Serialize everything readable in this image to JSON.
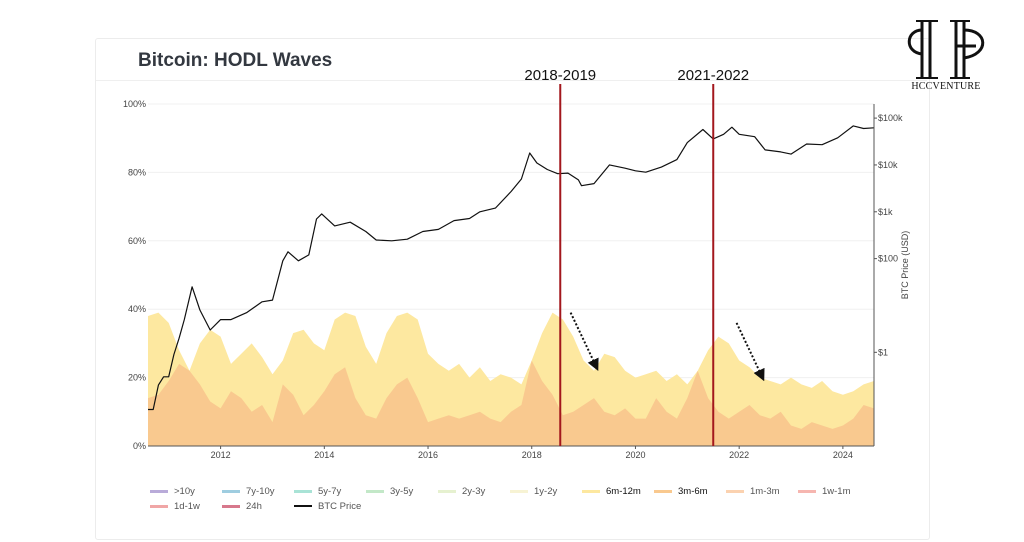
{
  "header": {
    "title": "Bitcoin: HODL Waves"
  },
  "logo": {
    "text": "HCCVENTURE",
    "icon": "hcc-monogram-icon"
  },
  "chart_data": {
    "type": "area",
    "title": "Bitcoin: HODL Waves",
    "xlabel": "",
    "ylabel": "",
    "y2label": "BTC Price (USD)",
    "xlim": [
      2010.6,
      2024.6
    ],
    "ylim": [
      0,
      100
    ],
    "y2lim": [
      0.01,
      200000
    ],
    "y2scale": "log",
    "x_ticks": [
      2012,
      2014,
      2016,
      2018,
      2020,
      2022,
      2024
    ],
    "x_tick_labels": [
      "2012",
      "2014",
      "2016",
      "2018",
      "2020",
      "2022",
      "2024"
    ],
    "y_ticks": [
      0,
      20,
      40,
      60,
      80,
      100
    ],
    "y_tick_labels": [
      "0%",
      "20%",
      "40%",
      "60%",
      "80%",
      "100%"
    ],
    "y2_ticks": [
      1,
      100,
      1000,
      10000,
      100000
    ],
    "y2_tick_labels": [
      "$1",
      "$100",
      "$1k",
      "$10k",
      "$100k"
    ],
    "annotations": [
      {
        "label": "2018-2019",
        "x": 2018.55,
        "color": "#a3171d"
      },
      {
        "label": "2021-2022",
        "x": 2021.5,
        "color": "#a3171d"
      }
    ],
    "arrows": [
      {
        "from": [
          2018.75,
          39
        ],
        "to": [
          2019.25,
          23
        ]
      },
      {
        "from": [
          2021.95,
          36
        ],
        "to": [
          2022.45,
          20
        ]
      }
    ],
    "legend": [
      {
        "name": ">10y",
        "color": "#b9abd9"
      },
      {
        "name": "7y-10y",
        "color": "#9fcde0"
      },
      {
        "name": "5y-7y",
        "color": "#a9e3d6"
      },
      {
        "name": "3y-5y",
        "color": "#c3e8c8"
      },
      {
        "name": "2y-3y",
        "color": "#e6f1d0"
      },
      {
        "name": "1y-2y",
        "color": "#f7f3d4"
      },
      {
        "name": "6m-12m",
        "color": "#fde8a0",
        "bold": true
      },
      {
        "name": "3m-6m",
        "color": "#f9c98f",
        "bold": true
      },
      {
        "name": "1m-3m",
        "color": "#fbd2b0"
      },
      {
        "name": "1w-1m",
        "color": "#f6b6b0"
      },
      {
        "name": "1d-1w",
        "color": "#f0a6a6"
      },
      {
        "name": "24h",
        "color": "#d7788c"
      },
      {
        "name": "BTC Price",
        "color": "#111111",
        "line": true
      }
    ],
    "series": [
      {
        "name": "6m-12m",
        "color": "#fde8a0",
        "x": [
          2010.6,
          2010.8,
          2011.0,
          2011.2,
          2011.4,
          2011.6,
          2011.8,
          2012.0,
          2012.2,
          2012.4,
          2012.6,
          2012.8,
          2013.0,
          2013.2,
          2013.4,
          2013.6,
          2013.8,
          2014.0,
          2014.2,
          2014.4,
          2014.6,
          2014.8,
          2015.0,
          2015.2,
          2015.4,
          2015.6,
          2015.8,
          2016.0,
          2016.2,
          2016.4,
          2016.6,
          2016.8,
          2017.0,
          2017.2,
          2017.4,
          2017.6,
          2017.8,
          2018.0,
          2018.2,
          2018.4,
          2018.6,
          2018.8,
          2019.0,
          2019.2,
          2019.4,
          2019.6,
          2019.8,
          2020.0,
          2020.2,
          2020.4,
          2020.6,
          2020.8,
          2021.0,
          2021.2,
          2021.4,
          2021.6,
          2021.8,
          2022.0,
          2022.2,
          2022.4,
          2022.6,
          2022.8,
          2023.0,
          2023.2,
          2023.4,
          2023.6,
          2023.8,
          2024.0,
          2024.2,
          2024.4,
          2024.6
        ],
        "values": [
          38,
          39,
          36,
          28,
          22,
          30,
          34,
          32,
          24,
          27,
          30,
          26,
          21,
          25,
          33,
          34,
          30,
          28,
          37,
          39,
          38,
          29,
          24,
          33,
          38,
          39,
          37,
          27,
          24,
          22,
          24,
          20,
          23,
          19,
          21,
          20,
          18,
          25,
          33,
          39,
          37,
          32,
          25,
          22,
          27,
          26,
          22,
          20,
          21,
          22,
          19,
          21,
          18,
          22,
          28,
          32,
          30,
          25,
          23,
          20,
          19,
          18,
          20,
          18,
          17,
          19,
          16,
          15,
          16,
          18,
          19
        ]
      },
      {
        "name": "3m-6m",
        "color": "#f9c98f",
        "x": [
          2010.6,
          2010.8,
          2011.0,
          2011.2,
          2011.4,
          2011.6,
          2011.8,
          2012.0,
          2012.2,
          2012.4,
          2012.6,
          2012.8,
          2013.0,
          2013.2,
          2013.4,
          2013.6,
          2013.8,
          2014.0,
          2014.2,
          2014.4,
          2014.6,
          2014.8,
          2015.0,
          2015.2,
          2015.4,
          2015.6,
          2015.8,
          2016.0,
          2016.2,
          2016.4,
          2016.6,
          2016.8,
          2017.0,
          2017.2,
          2017.4,
          2017.6,
          2017.8,
          2018.0,
          2018.2,
          2018.4,
          2018.6,
          2018.8,
          2019.0,
          2019.2,
          2019.4,
          2019.6,
          2019.8,
          2020.0,
          2020.2,
          2020.4,
          2020.6,
          2020.8,
          2021.0,
          2021.2,
          2021.4,
          2021.6,
          2021.8,
          2022.0,
          2022.2,
          2022.4,
          2022.6,
          2022.8,
          2023.0,
          2023.2,
          2023.4,
          2023.6,
          2023.8,
          2024.0,
          2024.2,
          2024.4,
          2024.6
        ],
        "values": [
          14,
          15,
          19,
          24,
          22,
          18,
          13,
          11,
          16,
          14,
          10,
          12,
          7,
          18,
          15,
          9,
          12,
          16,
          21,
          23,
          14,
          9,
          8,
          14,
          18,
          20,
          14,
          7,
          8,
          9,
          8,
          9,
          10,
          8,
          7,
          10,
          12,
          25,
          19,
          15,
          9,
          10,
          12,
          14,
          10,
          9,
          11,
          8,
          8,
          14,
          10,
          8,
          14,
          22,
          14,
          10,
          8,
          10,
          12,
          9,
          8,
          10,
          6,
          5,
          7,
          6,
          5,
          6,
          8,
          12,
          11
        ]
      },
      {
        "name": "BTC Price",
        "color": "#111111",
        "axis": "y2",
        "x": [
          2010.6,
          2010.7,
          2010.8,
          2010.9,
          2011.0,
          2011.1,
          2011.2,
          2011.3,
          2011.45,
          2011.6,
          2011.8,
          2012.0,
          2012.2,
          2012.5,
          2012.8,
          2013.0,
          2013.2,
          2013.3,
          2013.5,
          2013.7,
          2013.85,
          2013.95,
          2014.2,
          2014.5,
          2014.8,
          2015.0,
          2015.3,
          2015.6,
          2015.9,
          2016.2,
          2016.5,
          2016.8,
          2017.0,
          2017.3,
          2017.6,
          2017.8,
          2017.96,
          2018.1,
          2018.3,
          2018.5,
          2018.7,
          2018.9,
          2018.96,
          2019.2,
          2019.5,
          2019.8,
          2020.0,
          2020.2,
          2020.5,
          2020.8,
          2021.0,
          2021.3,
          2021.5,
          2021.7,
          2021.86,
          2022.0,
          2022.3,
          2022.5,
          2022.8,
          2023.0,
          2023.3,
          2023.6,
          2023.9,
          2024.2,
          2024.4,
          2024.6
        ],
        "values": [
          0.06,
          0.06,
          0.2,
          0.3,
          0.3,
          0.9,
          2,
          5,
          25,
          8,
          3,
          5,
          5,
          7,
          12,
          13,
          90,
          140,
          90,
          120,
          700,
          900,
          500,
          600,
          380,
          250,
          240,
          260,
          380,
          420,
          650,
          720,
          1000,
          1200,
          2700,
          5000,
          18000,
          11000,
          8000,
          6500,
          6700,
          4800,
          3600,
          4000,
          10000,
          8500,
          7500,
          7000,
          9000,
          13000,
          30000,
          57000,
          36000,
          45000,
          64000,
          45000,
          40000,
          21000,
          19000,
          17000,
          28000,
          27000,
          38000,
          68000,
          60000,
          62000
        ]
      }
    ]
  }
}
